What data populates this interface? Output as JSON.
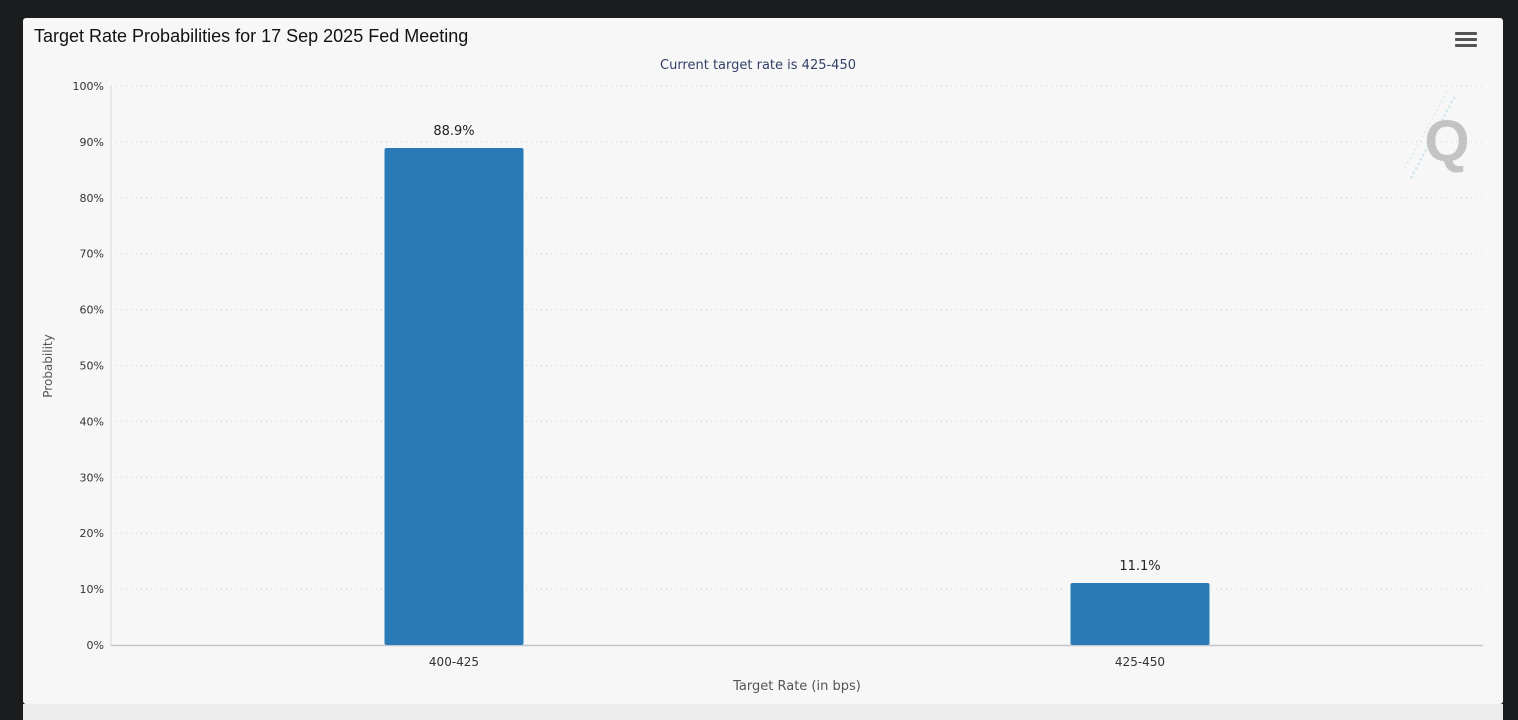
{
  "chart_title": "Target Rate Probabilities for 17 Sep 2025 Fed Meeting",
  "colors": {
    "bar": "#2a7ab7",
    "grid": "#cfcfcf",
    "axis_text": "#333333",
    "subtitle": "#333f66"
  },
  "icons": {
    "menu": "hamburger-menu-icon",
    "watermark": "q-logo-watermark"
  },
  "chart_data": {
    "type": "bar",
    "title": "Target Rate Probabilities for 17 Sep 2025 Fed Meeting",
    "subtitle": "Current target rate is 425-450",
    "xlabel": "Target Rate (in bps)",
    "ylabel": "Probability",
    "categories": [
      "400-425",
      "425-450"
    ],
    "values": [
      88.9,
      11.1
    ],
    "data_labels": [
      "88.9%",
      "11.1%"
    ],
    "ylim": [
      0,
      100
    ],
    "yticks": [
      0,
      10,
      20,
      30,
      40,
      50,
      60,
      70,
      80,
      90,
      100
    ],
    "ytick_labels": [
      "0%",
      "10%",
      "20%",
      "30%",
      "40%",
      "50%",
      "60%",
      "70%",
      "80%",
      "90%",
      "100%"
    ],
    "grid": true,
    "legend": "none"
  }
}
